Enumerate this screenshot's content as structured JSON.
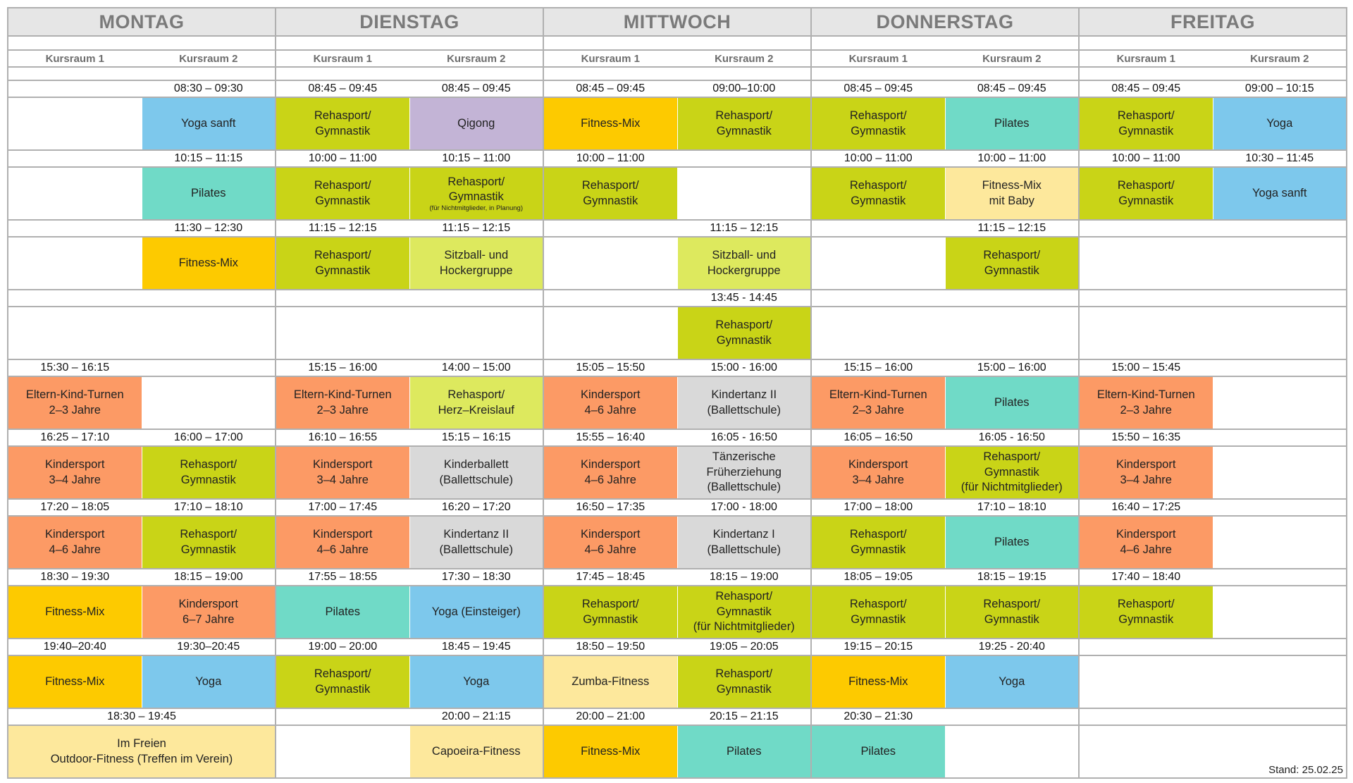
{
  "palette": {
    "reha": "#c9d417",
    "yoga": "#7dc8ec",
    "qigong": "#c3b4d6",
    "fitness": "#fdca00",
    "pilates": "#70dac7",
    "lightyellow": "#fde89c",
    "kinder": "#fc9a65",
    "sitzball": "#dde95e",
    "ballett": "#d9d9d9"
  },
  "stand": "Stand: 25.02.25",
  "days": [
    {
      "name": "MONTAG",
      "rooms": [
        {
          "label": "Kursraum 1",
          "slots": [
            null,
            null,
            null,
            null,
            {
              "time": "15:30 – 16:15",
              "lines": [
                "Eltern-Kind-Turnen",
                "2–3 Jahre"
              ],
              "color": "kinder"
            },
            {
              "time": "16:25 – 17:10",
              "lines": [
                "Kindersport",
                "3–4 Jahre"
              ],
              "color": "kinder"
            },
            {
              "time": "17:20 – 18:05",
              "lines": [
                "Kindersport",
                "4–6 Jahre"
              ],
              "color": "kinder"
            },
            {
              "time": "18:30 – 19:30",
              "lines": [
                "Fitness-Mix"
              ],
              "color": "fitness"
            },
            {
              "time": "19:40–20:40",
              "lines": [
                "Fitness-Mix"
              ],
              "color": "fitness"
            },
            {
              "time": "18:30 – 19:45",
              "lines": [
                "Im Freien",
                "Outdoor-Fitness (Treffen im Verein)"
              ],
              "color": "lightyellow",
              "spans_both_rooms": true
            }
          ]
        },
        {
          "label": "Kursraum 2",
          "slots": [
            {
              "time": "08:30 – 09:30",
              "lines": [
                "Yoga sanft"
              ],
              "color": "yoga"
            },
            {
              "time": "10:15 – 11:15",
              "lines": [
                "Pilates"
              ],
              "color": "pilates"
            },
            {
              "time": "11:30 – 12:30",
              "lines": [
                "Fitness-Mix"
              ],
              "color": "fitness"
            },
            null,
            null,
            {
              "time": "16:00 – 17:00",
              "lines": [
                "Rehasport/",
                "Gymnastik"
              ],
              "color": "reha"
            },
            {
              "time": "17:10 – 18:10",
              "lines": [
                "Rehasport/",
                "Gymnastik"
              ],
              "color": "reha"
            },
            {
              "time": "18:15 – 19:00",
              "lines": [
                "Kindersport",
                "6–7 Jahre"
              ],
              "color": "kinder"
            },
            {
              "time": "19:30–20:45",
              "lines": [
                "Yoga"
              ],
              "color": "yoga"
            },
            null
          ]
        }
      ]
    },
    {
      "name": "DIENSTAG",
      "rooms": [
        {
          "label": "Kursraum 1",
          "slots": [
            {
              "time": "08:45 – 09:45",
              "lines": [
                "Rehasport/",
                "Gymnastik"
              ],
              "color": "reha"
            },
            {
              "time": "10:00 – 11:00",
              "lines": [
                "Rehasport/",
                "Gymnastik"
              ],
              "color": "reha"
            },
            {
              "time": "11:15 – 12:15",
              "lines": [
                "Rehasport/",
                "Gymnastik"
              ],
              "color": "reha"
            },
            null,
            {
              "time": "15:15 – 16:00",
              "lines": [
                "Eltern-Kind-Turnen",
                "2–3 Jahre"
              ],
              "color": "kinder"
            },
            {
              "time": "16:10 – 16:55",
              "lines": [
                "Kindersport",
                "3–4 Jahre"
              ],
              "color": "kinder"
            },
            {
              "time": "17:00 – 17:45",
              "lines": [
                "Kindersport",
                "4–6 Jahre"
              ],
              "color": "kinder"
            },
            {
              "time": "17:55 – 18:55",
              "lines": [
                "Pilates"
              ],
              "color": "pilates"
            },
            {
              "time": "19:00 – 20:00",
              "lines": [
                "Rehasport/",
                "Gymnastik"
              ],
              "color": "reha"
            },
            null
          ]
        },
        {
          "label": "Kursraum 2",
          "slots": [
            {
              "time": "08:45 – 09:45",
              "lines": [
                "Qigong"
              ],
              "color": "qigong"
            },
            {
              "time": "10:15 – 11:00",
              "lines": [
                "Rehasport/",
                "Gymnastik"
              ],
              "note": "(für Nichtmitglieder, in Planung)",
              "color": "reha"
            },
            {
              "time": "11:15 – 12:15",
              "lines": [
                "Sitzball- und",
                "Hockergruppe"
              ],
              "color": "sitzball"
            },
            null,
            {
              "time": "14:00 – 15:00",
              "lines": [
                "Rehasport/",
                "Herz–Kreislauf"
              ],
              "color": "sitzball"
            },
            {
              "time": "15:15 – 16:15",
              "lines": [
                "Kinderballett",
                "(Ballettschule)"
              ],
              "color": "ballett"
            },
            {
              "time": "16:20 – 17:20",
              "lines": [
                "Kindertanz II",
                "(Ballettschule)"
              ],
              "color": "ballett"
            },
            {
              "time": "17:30 – 18:30",
              "lines": [
                "Yoga (Einsteiger)"
              ],
              "color": "yoga"
            },
            {
              "time": "18:45 – 19:45",
              "lines": [
                "Yoga"
              ],
              "color": "yoga"
            },
            {
              "time": "20:00 – 21:15",
              "lines": [
                "Capoeira-Fitness"
              ],
              "color": "lightyellow"
            }
          ]
        }
      ]
    },
    {
      "name": "MITTWOCH",
      "rooms": [
        {
          "label": "Kursraum 1",
          "slots": [
            {
              "time": "08:45 – 09:45",
              "lines": [
                "Fitness-Mix"
              ],
              "color": "fitness"
            },
            {
              "time": "10:00 – 11:00",
              "lines": [
                "Rehasport/",
                "Gymnastik"
              ],
              "color": "reha"
            },
            null,
            null,
            {
              "time": "15:05 – 15:50",
              "lines": [
                "Kindersport",
                "4–6 Jahre"
              ],
              "color": "kinder"
            },
            {
              "time": "15:55 – 16:40",
              "lines": [
                "Kindersport",
                "4–6 Jahre"
              ],
              "color": "kinder"
            },
            {
              "time": "16:50 – 17:35",
              "lines": [
                "Kindersport",
                "4–6 Jahre"
              ],
              "color": "kinder"
            },
            {
              "time": "17:45 – 18:45",
              "lines": [
                "Rehasport/",
                "Gymnastik"
              ],
              "color": "reha"
            },
            {
              "time": "18:50 – 19:50",
              "lines": [
                "Zumba-Fitness"
              ],
              "color": "lightyellow"
            },
            {
              "time": "20:00 – 21:00",
              "lines": [
                "Fitness-Mix"
              ],
              "color": "fitness"
            }
          ]
        },
        {
          "label": "Kursraum 2",
          "slots": [
            {
              "time": "09:00–10:00",
              "lines": [
                "Rehasport/",
                "Gymnastik"
              ],
              "color": "reha"
            },
            null,
            {
              "time": "11:15 – 12:15",
              "lines": [
                "Sitzball- und",
                "Hockergruppe"
              ],
              "color": "sitzball"
            },
            {
              "time": "13:45 - 14:45",
              "lines": [
                "Rehasport/",
                "Gymnastik"
              ],
              "color": "reha"
            },
            {
              "time": "15:00 - 16:00",
              "lines": [
                "Kindertanz II",
                "(Ballettschule)"
              ],
              "color": "ballett"
            },
            {
              "time": "16:05 - 16:50",
              "lines": [
                "Tänzerische",
                "Früherziehung",
                "(Ballettschule)"
              ],
              "color": "ballett"
            },
            {
              "time": "17:00 - 18:00",
              "lines": [
                "Kindertanz I",
                "(Ballettschule)"
              ],
              "color": "ballett"
            },
            {
              "time": "18:15 – 19:00",
              "lines": [
                "Rehasport/",
                "Gymnastik",
                "(für Nichtmitglieder)"
              ],
              "color": "reha"
            },
            {
              "time": "19:05 – 20:05",
              "lines": [
                "Rehasport/",
                "Gymnastik"
              ],
              "color": "reha"
            },
            {
              "time": "20:15 – 21:15",
              "lines": [
                "Pilates"
              ],
              "color": "pilates"
            }
          ]
        }
      ]
    },
    {
      "name": "DONNERSTAG",
      "rooms": [
        {
          "label": "Kursraum 1",
          "slots": [
            {
              "time": "08:45 – 09:45",
              "lines": [
                "Rehasport/",
                "Gymnastik"
              ],
              "color": "reha"
            },
            {
              "time": "10:00 – 11:00",
              "lines": [
                "Rehasport/",
                "Gymnastik"
              ],
              "color": "reha"
            },
            null,
            null,
            {
              "time": "15:15 – 16:00",
              "lines": [
                "Eltern-Kind-Turnen",
                "2–3 Jahre"
              ],
              "color": "kinder"
            },
            {
              "time": "16:05 – 16:50",
              "lines": [
                "Kindersport",
                "3–4 Jahre"
              ],
              "color": "kinder"
            },
            {
              "time": "17:00 – 18:00",
              "lines": [
                "Rehasport/",
                "Gymnastik"
              ],
              "color": "reha"
            },
            {
              "time": "18:05 – 19:05",
              "lines": [
                "Rehasport/",
                "Gymnastik"
              ],
              "color": "reha"
            },
            {
              "time": "19:15 – 20:15",
              "lines": [
                "Fitness-Mix"
              ],
              "color": "fitness"
            },
            {
              "time": "20:30 – 21:30",
              "lines": [
                "Pilates"
              ],
              "color": "pilates"
            }
          ]
        },
        {
          "label": "Kursraum 2",
          "slots": [
            {
              "time": "08:45 – 09:45",
              "lines": [
                "Pilates"
              ],
              "color": "pilates"
            },
            {
              "time": "10:00 – 11:00",
              "lines": [
                "Fitness-Mix",
                "mit Baby"
              ],
              "color": "lightyellow"
            },
            {
              "time": "11:15 – 12:15",
              "lines": [
                "Rehasport/",
                "Gymnastik"
              ],
              "color": "reha"
            },
            null,
            {
              "time": "15:00 – 16:00",
              "lines": [
                "Pilates"
              ],
              "color": "pilates"
            },
            {
              "time": "16:05 - 16:50",
              "lines": [
                "Rehasport/",
                "Gymnastik",
                "(für Nichtmitglieder)"
              ],
              "color": "reha"
            },
            {
              "time": "17:10 – 18:10",
              "lines": [
                "Pilates"
              ],
              "color": "pilates"
            },
            {
              "time": "18:15 – 19:15",
              "lines": [
                "Rehasport/",
                "Gymnastik"
              ],
              "color": "reha"
            },
            {
              "time": "19:25 - 20:40",
              "lines": [
                "Yoga"
              ],
              "color": "yoga"
            },
            null
          ]
        }
      ]
    },
    {
      "name": "FREITAG",
      "rooms": [
        {
          "label": "Kursraum 1",
          "slots": [
            {
              "time": "08:45 – 09:45",
              "lines": [
                "Rehasport/",
                "Gymnastik"
              ],
              "color": "reha"
            },
            {
              "time": "10:00 – 11:00",
              "lines": [
                "Rehasport/",
                "Gymnastik"
              ],
              "color": "reha"
            },
            null,
            null,
            {
              "time": "15:00 – 15:45",
              "lines": [
                "Eltern-Kind-Turnen",
                "2–3 Jahre"
              ],
              "color": "kinder"
            },
            {
              "time": "15:50 – 16:35",
              "lines": [
                "Kindersport",
                "3–4 Jahre"
              ],
              "color": "kinder"
            },
            {
              "time": "16:40 – 17:25",
              "lines": [
                "Kindersport",
                "4–6 Jahre"
              ],
              "color": "kinder"
            },
            {
              "time": "17:40 – 18:40",
              "lines": [
                "Rehasport/",
                "Gymnastik"
              ],
              "color": "reha"
            },
            null,
            null
          ]
        },
        {
          "label": "Kursraum 2",
          "slots": [
            {
              "time": "09:00 – 10:15",
              "lines": [
                "Yoga"
              ],
              "color": "yoga"
            },
            {
              "time": "10:30 – 11:45",
              "lines": [
                "Yoga sanft"
              ],
              "color": "yoga"
            },
            null,
            null,
            null,
            null,
            null,
            null,
            null,
            null
          ]
        }
      ]
    }
  ]
}
